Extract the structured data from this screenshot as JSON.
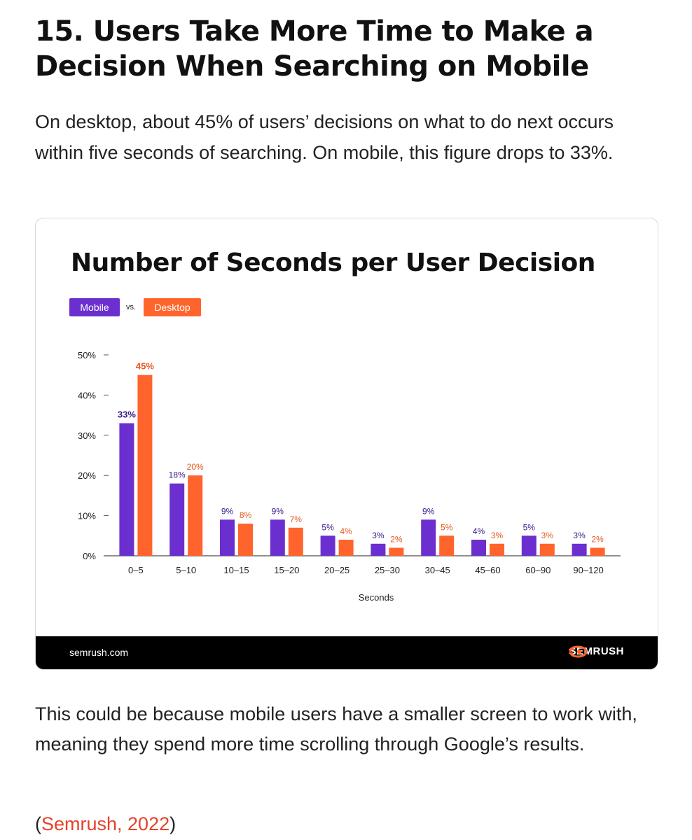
{
  "article": {
    "heading": "15. Users Take More Time to Make a Decision When Searching on Mobile",
    "lead": "On desktop, about 45% of users’ decisions on what to do next occurs within five seconds of searching. On mobile, this figure drops to 33%.",
    "after": "This could be because mobile users have a smaller screen to work with, meaning they spend more time scrolling through Google’s results.",
    "cite_open": "(",
    "cite_link": "Semrush, 2022",
    "cite_close": ")"
  },
  "legend": {
    "mobile": "Mobile",
    "vs": "vs.",
    "desktop": "Desktop"
  },
  "footer": {
    "site": "semrush.com",
    "brand": "SEMRUSH"
  },
  "colors": {
    "mobile": "#6b2fcf",
    "desktop": "#ff642d",
    "mobile_label": "#3a1a8c",
    "desktop_label": "#e8551c"
  },
  "chart_data": {
    "type": "bar",
    "title": "Number of Seconds per User Decision",
    "xlabel": "Seconds",
    "ylabel": "",
    "ylim": [
      0,
      50
    ],
    "yticks": [
      "0%",
      "10%",
      "20%",
      "30%",
      "40%",
      "50%"
    ],
    "ytick_values": [
      0,
      10,
      20,
      30,
      40,
      50
    ],
    "categories": [
      "0–5",
      "5–10",
      "10–15",
      "15–20",
      "20–25",
      "25–30",
      "30–45",
      "45–60",
      "60–90",
      "90–120"
    ],
    "series": [
      {
        "name": "Mobile",
        "values": [
          33,
          18,
          9,
          9,
          5,
          3,
          9,
          4,
          5,
          3
        ],
        "labels": [
          "33%",
          "18%",
          "9%",
          "9%",
          "5%",
          "3%",
          "9%",
          "4%",
          "5%",
          "3%"
        ]
      },
      {
        "name": "Desktop",
        "values": [
          45,
          20,
          8,
          7,
          4,
          2,
          5,
          3,
          3,
          2
        ],
        "labels": [
          "45%",
          "20%",
          "8%",
          "7%",
          "4%",
          "2%",
          "5%",
          "3%",
          "3%",
          "2%"
        ]
      }
    ],
    "grid": false,
    "legend": "top-left"
  }
}
